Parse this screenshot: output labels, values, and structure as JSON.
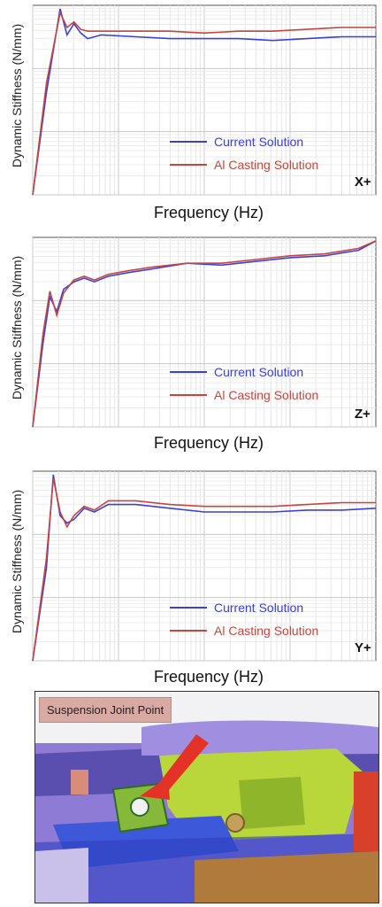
{
  "chart_data": [
    {
      "type": "line",
      "ylabel": "Dynamic Stiffness (N/mm)",
      "xlabel": "Frequency (Hz)",
      "tag": "X+",
      "grid": true,
      "legend": "lower-right",
      "x": [
        0,
        0.04,
        0.08,
        0.1,
        0.12,
        0.14,
        0.16,
        0.2,
        0.3,
        0.4,
        0.5,
        0.6,
        0.7,
        0.8,
        0.9,
        1.0
      ],
      "series": [
        {
          "name": "Current Solution",
          "color": "#3a3fe0",
          "values": [
            0.0,
            0.55,
            1.0,
            0.86,
            0.92,
            0.87,
            0.84,
            0.86,
            0.85,
            0.84,
            0.84,
            0.84,
            0.83,
            0.84,
            0.85,
            0.85
          ]
        },
        {
          "name": "Al Casting Solution",
          "color": "#c8453c",
          "values": [
            0.0,
            0.6,
            0.98,
            0.9,
            0.93,
            0.89,
            0.88,
            0.88,
            0.88,
            0.88,
            0.87,
            0.88,
            0.88,
            0.89,
            0.9,
            0.9
          ]
        }
      ]
    },
    {
      "type": "line",
      "ylabel": "Dynamic Stiffness (N/mm)",
      "xlabel": "Frequency (Hz)",
      "tag": "Z+",
      "grid": true,
      "legend": "lower-right",
      "x": [
        0,
        0.03,
        0.05,
        0.07,
        0.09,
        0.12,
        0.15,
        0.18,
        0.22,
        0.28,
        0.35,
        0.45,
        0.55,
        0.65,
        0.75,
        0.85,
        0.95,
        1.0
      ],
      "series": [
        {
          "name": "Current Solution",
          "color": "#3a3fe0",
          "values": [
            0.0,
            0.45,
            0.7,
            0.62,
            0.74,
            0.78,
            0.8,
            0.78,
            0.81,
            0.83,
            0.85,
            0.88,
            0.87,
            0.89,
            0.91,
            0.92,
            0.95,
            1.0
          ]
        },
        {
          "name": "Al Casting Solution",
          "color": "#c8453c",
          "values": [
            0.0,
            0.5,
            0.73,
            0.6,
            0.72,
            0.79,
            0.81,
            0.79,
            0.82,
            0.84,
            0.86,
            0.88,
            0.88,
            0.9,
            0.92,
            0.93,
            0.96,
            1.0
          ]
        }
      ]
    },
    {
      "type": "line",
      "ylabel": "Dynamic Stiffness (N/mm)",
      "xlabel": "Frequency (Hz)",
      "tag": "Y+",
      "grid": true,
      "legend": "lower-right",
      "x": [
        0,
        0.04,
        0.06,
        0.08,
        0.1,
        0.12,
        0.15,
        0.18,
        0.22,
        0.3,
        0.4,
        0.5,
        0.6,
        0.7,
        0.8,
        0.9,
        1.0
      ],
      "series": [
        {
          "name": "Current Solution",
          "color": "#3a3fe0",
          "values": [
            0.0,
            0.5,
            1.0,
            0.78,
            0.74,
            0.76,
            0.82,
            0.8,
            0.84,
            0.84,
            0.82,
            0.8,
            0.8,
            0.8,
            0.81,
            0.81,
            0.82
          ]
        },
        {
          "name": "Al Casting Solution",
          "color": "#c8453c",
          "values": [
            0.0,
            0.55,
            0.98,
            0.8,
            0.72,
            0.78,
            0.83,
            0.81,
            0.86,
            0.86,
            0.84,
            0.83,
            0.83,
            0.83,
            0.84,
            0.85,
            0.85
          ]
        }
      ]
    }
  ],
  "photo": {
    "label": "Suspension Joint Point"
  }
}
